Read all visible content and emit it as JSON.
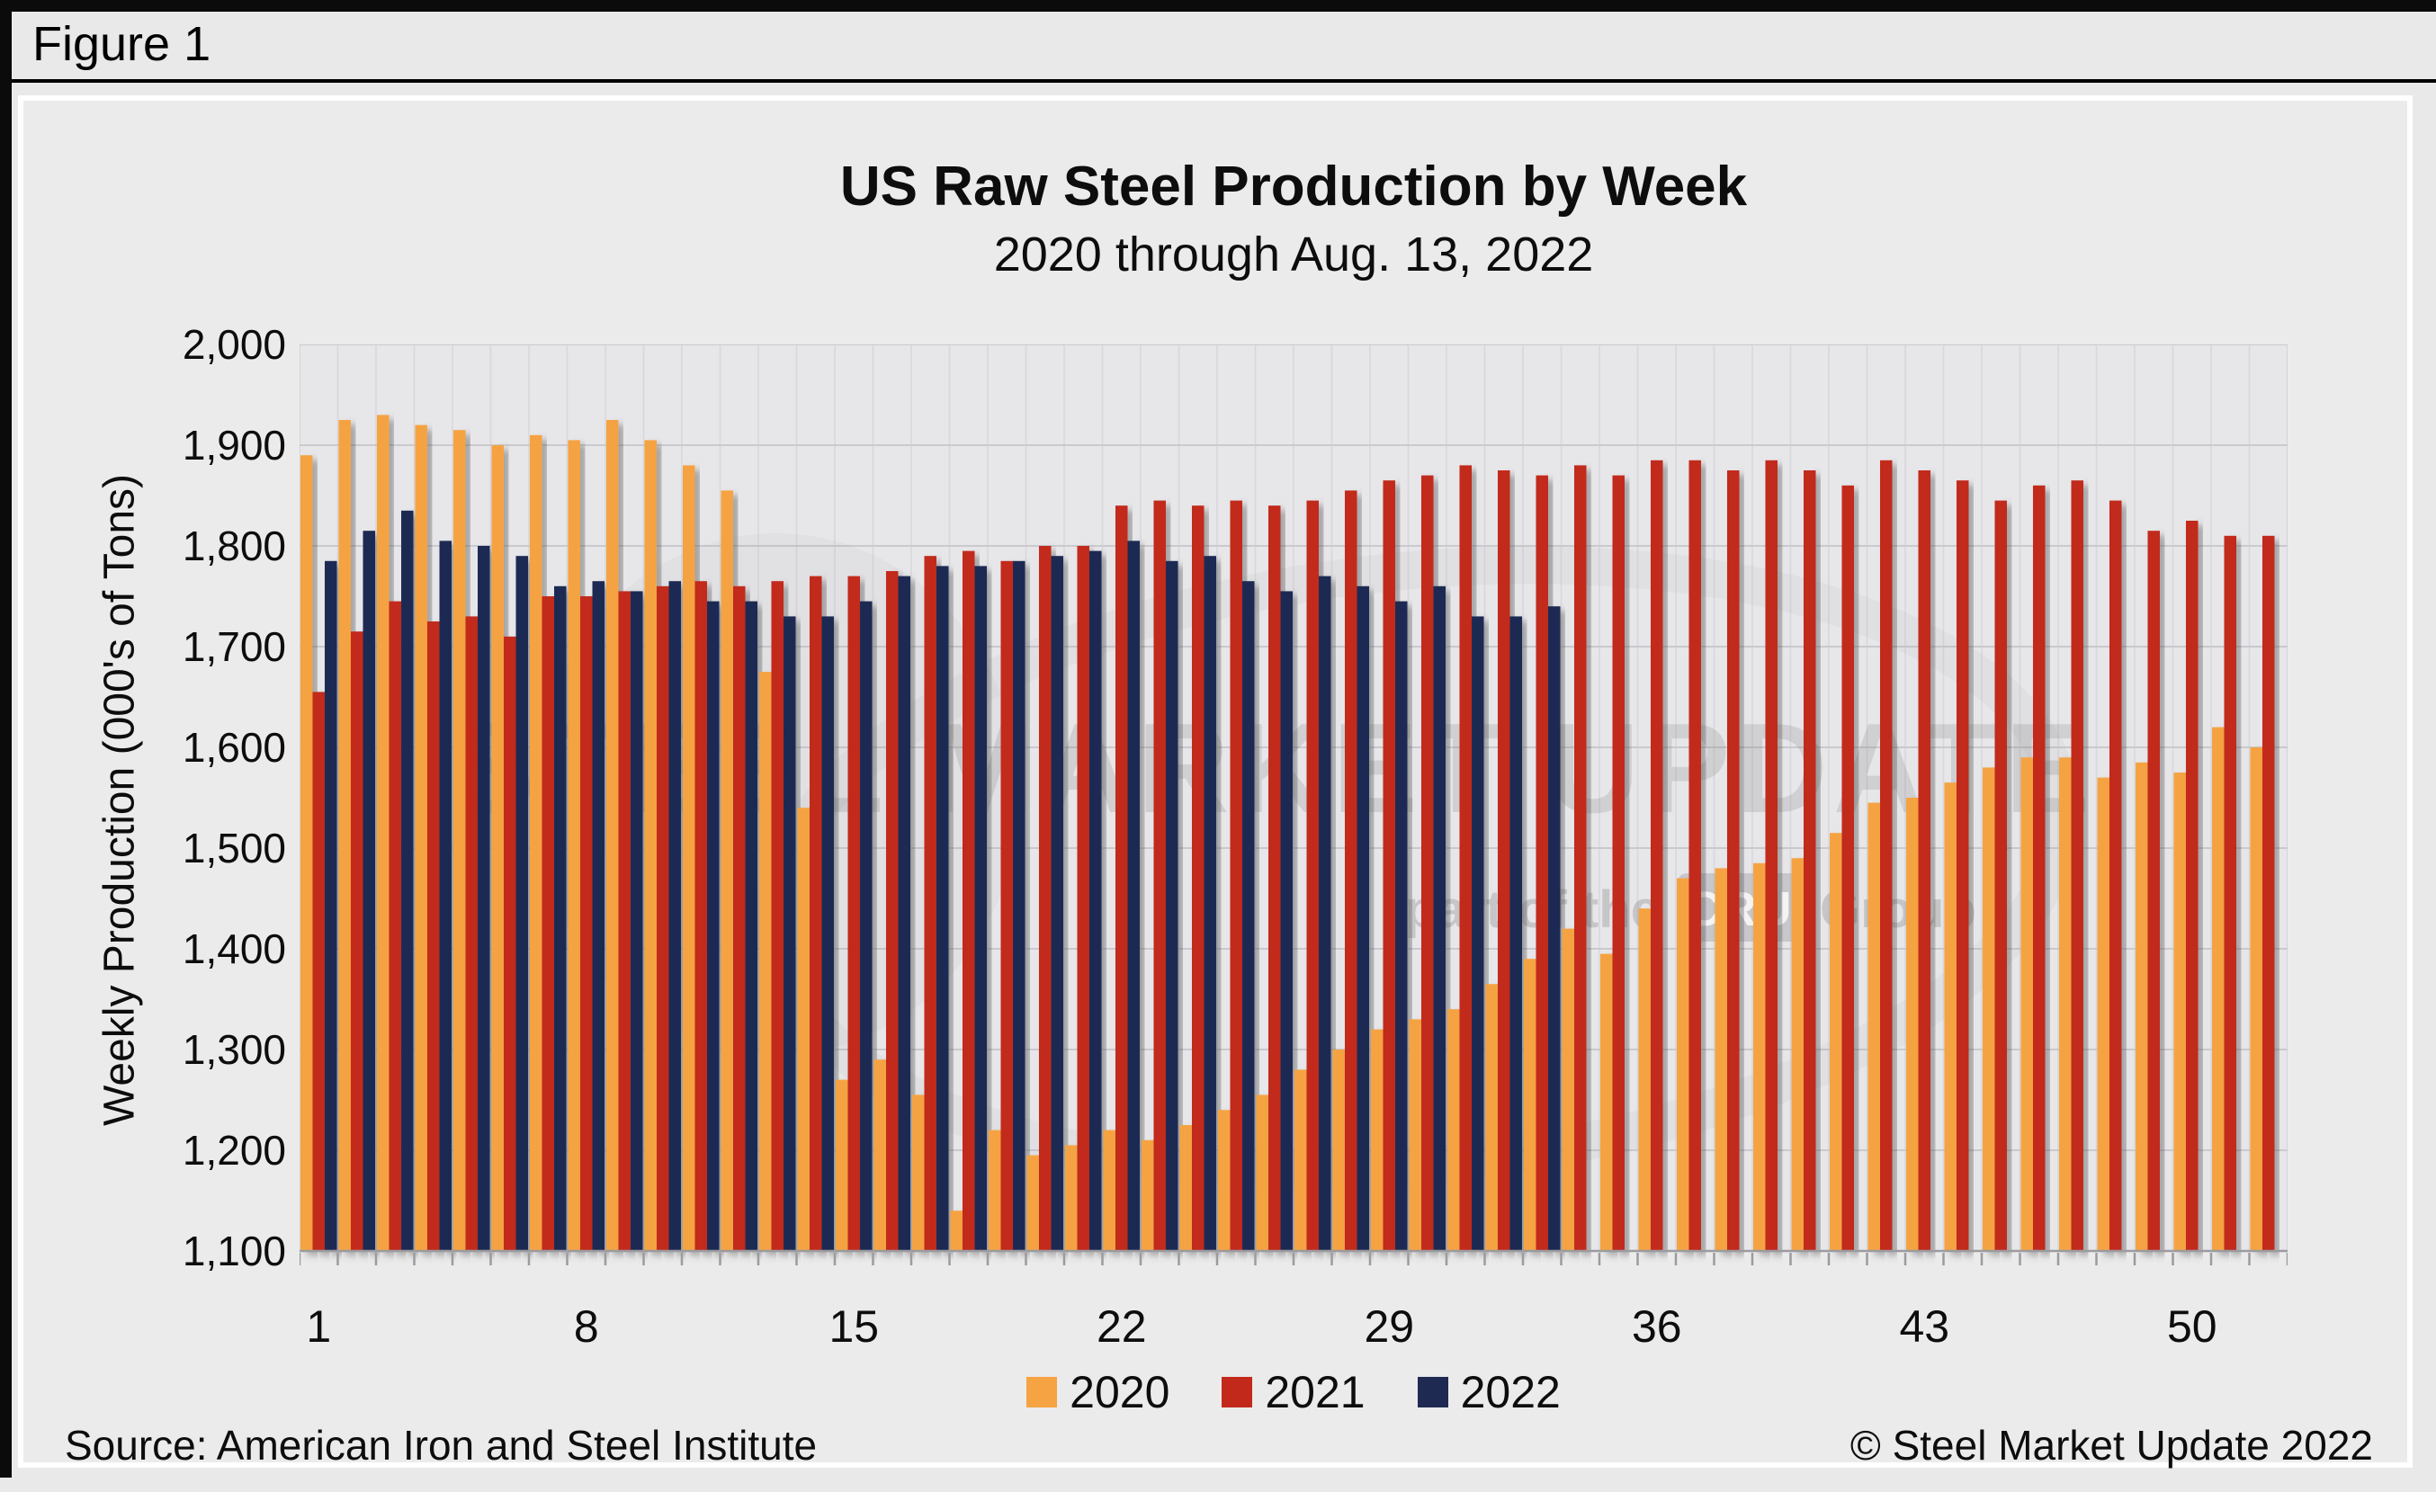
{
  "figure_label": "Figure 1",
  "header": {
    "title": "US Raw Steel Production by Week",
    "subtitle": "2020 through Aug. 13, 2022"
  },
  "footer": {
    "source": "Source: American Iron and Steel Institute",
    "copyright": "© Steel Market Update 2022"
  },
  "watermark": {
    "line1": "STEEL MARKET UPDATE",
    "line2_pre": "part of the",
    "line2_box": "CRU",
    "line2_post": "Group"
  },
  "colors": {
    "series_2020": "#F5A343",
    "series_2021": "#C2291B",
    "series_2022": "#1F2A52",
    "plot_bg": "#e7e7ea",
    "grid_h": "#c9c9ce",
    "grid_v": "#d8d8dc",
    "axis": "#9b9ba0",
    "page_bg": "#e9e9e9",
    "panel_bg": "#ebebeb"
  },
  "chart_data": {
    "type": "bar",
    "title": "US Raw Steel Production by Week",
    "subtitle": "2020 through Aug. 13, 2022",
    "xlabel": "",
    "ylabel": "Weekly Production (000's of Tons)",
    "ylim": [
      1100,
      2000
    ],
    "ytick_step": 100,
    "xticks": [
      1,
      8,
      15,
      22,
      29,
      36,
      43,
      50
    ],
    "grid": true,
    "legend_position": "bottom",
    "categories": [
      1,
      2,
      3,
      4,
      5,
      6,
      7,
      8,
      9,
      10,
      11,
      12,
      13,
      14,
      15,
      16,
      17,
      18,
      19,
      20,
      21,
      22,
      23,
      24,
      25,
      26,
      27,
      28,
      29,
      30,
      31,
      32,
      33,
      34,
      35,
      36,
      37,
      38,
      39,
      40,
      41,
      42,
      43,
      44,
      45,
      46,
      47,
      48,
      49,
      50,
      51,
      52
    ],
    "series": [
      {
        "name": "2020",
        "color": "#F5A343",
        "values": [
          1890,
          1925,
          1930,
          1920,
          1915,
          1900,
          1910,
          1905,
          1925,
          1905,
          1880,
          1855,
          1675,
          1540,
          1270,
          1290,
          1255,
          1140,
          1220,
          1195,
          1205,
          1220,
          1210,
          1225,
          1240,
          1255,
          1280,
          1300,
          1320,
          1330,
          1340,
          1365,
          1390,
          1420,
          1395,
          1440,
          1470,
          1480,
          1485,
          1490,
          1515,
          1545,
          1550,
          1565,
          1580,
          1590,
          1590,
          1570,
          1585,
          1575,
          1620,
          1600
        ]
      },
      {
        "name": "2021",
        "color": "#C2291B",
        "values": [
          1655,
          1715,
          1745,
          1725,
          1730,
          1710,
          1750,
          1750,
          1755,
          1760,
          1765,
          1760,
          1765,
          1770,
          1770,
          1775,
          1790,
          1795,
          1785,
          1800,
          1800,
          1840,
          1845,
          1840,
          1845,
          1840,
          1845,
          1855,
          1865,
          1870,
          1880,
          1875,
          1870,
          1880,
          1870,
          1885,
          1885,
          1875,
          1885,
          1875,
          1860,
          1885,
          1875,
          1865,
          1845,
          1860,
          1865,
          1845,
          1815,
          1825,
          1810,
          1810
        ]
      },
      {
        "name": "2022",
        "color": "#1F2A52",
        "values": [
          1785,
          1815,
          1835,
          1805,
          1800,
          1790,
          1760,
          1765,
          1755,
          1765,
          1745,
          1745,
          1730,
          1730,
          1745,
          1770,
          1780,
          1780,
          1785,
          1790,
          1795,
          1805,
          1785,
          1790,
          1765,
          1755,
          1770,
          1760,
          1745,
          1760,
          1730,
          1730,
          1740
        ]
      }
    ]
  }
}
